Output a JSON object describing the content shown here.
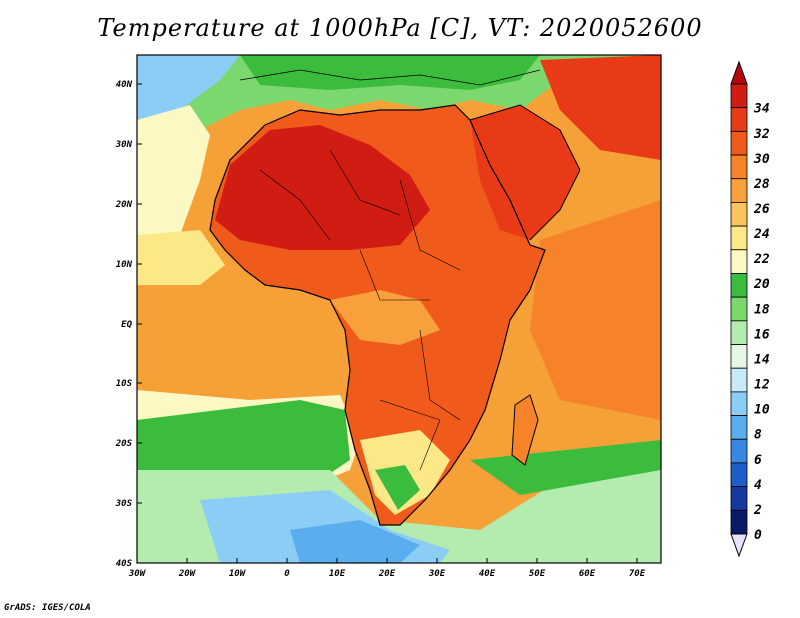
{
  "title": "Temperature at 1000hPa [C], VT: 2020052600",
  "credit": "GrADS: IGES/COLA",
  "map": {
    "lon_range": [
      -30,
      75
    ],
    "lat_range": [
      -40,
      45
    ],
    "x_ticks": [
      "30W",
      "20W",
      "10W",
      "0",
      "10E",
      "20E",
      "30E",
      "40E",
      "50E",
      "60E",
      "70E"
    ],
    "y_ticks": [
      "40N",
      "30N",
      "20N",
      "10N",
      "EQ",
      "10S",
      "20S",
      "30S",
      "40S"
    ]
  },
  "colorbar": {
    "labels": [
      "34",
      "32",
      "30",
      "28",
      "26",
      "24",
      "22",
      "20",
      "18",
      "16",
      "14",
      "12",
      "10",
      "8",
      "6",
      "4",
      "2",
      "0"
    ],
    "colors": [
      "#d01c12",
      "#e83a16",
      "#f05a1a",
      "#f6822a",
      "#f8a03c",
      "#fbc35c",
      "#fde888",
      "#fcf8c4",
      "#3cbc3c",
      "#7bd86e",
      "#b4ecb0",
      "#e4f8e4",
      "#c8eaf8",
      "#8ccdf5",
      "#5aaeee",
      "#3a86e4",
      "#1e5ec8",
      "#143a9e",
      "#0b1a68"
    ]
  }
}
